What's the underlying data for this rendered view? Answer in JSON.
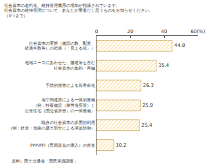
{
  "chart_data": {
    "type": "bar",
    "orientation": "horizontal",
    "title": "社会資本の老朽化、維持管理費用の増加が指摘されています。\n社会資本の維持管理について、あなたが重要だと思うものをお知らせください。\n（3つまで）",
    "categories": [
      "社会資本の実態（施設の数、配置、\n経過年数等）の把握（「見える化」）",
      "地域ニーズにあわせた、撤退等も含む\n社会資本の集約・再編",
      "予防的措置による長寿命化",
      "省庁間連携による一体的整備\n（例：特養施設（厚労省所管）と\n公営住宅（国交省所管）の一体整備）",
      "既存の社会資本の多面的利用\n（例：鉄道・道路の盛土部分による津波防御）",
      "PPP/PFI（民間資金の導入）の推進"
    ],
    "values": [
      44.8,
      35.4,
      26.3,
      25.9,
      25.4,
      10.2
    ],
    "color": "#f2b233",
    "xlim": [
      0,
      60
    ],
    "xticks": [
      0,
      20,
      40,
      {
        "value": 60,
        "label": "60(%)"
      }
    ],
    "grid": false,
    "data_labels": true,
    "annotations": [
      "資料）国土交通省「国民意識調査」"
    ]
  }
}
